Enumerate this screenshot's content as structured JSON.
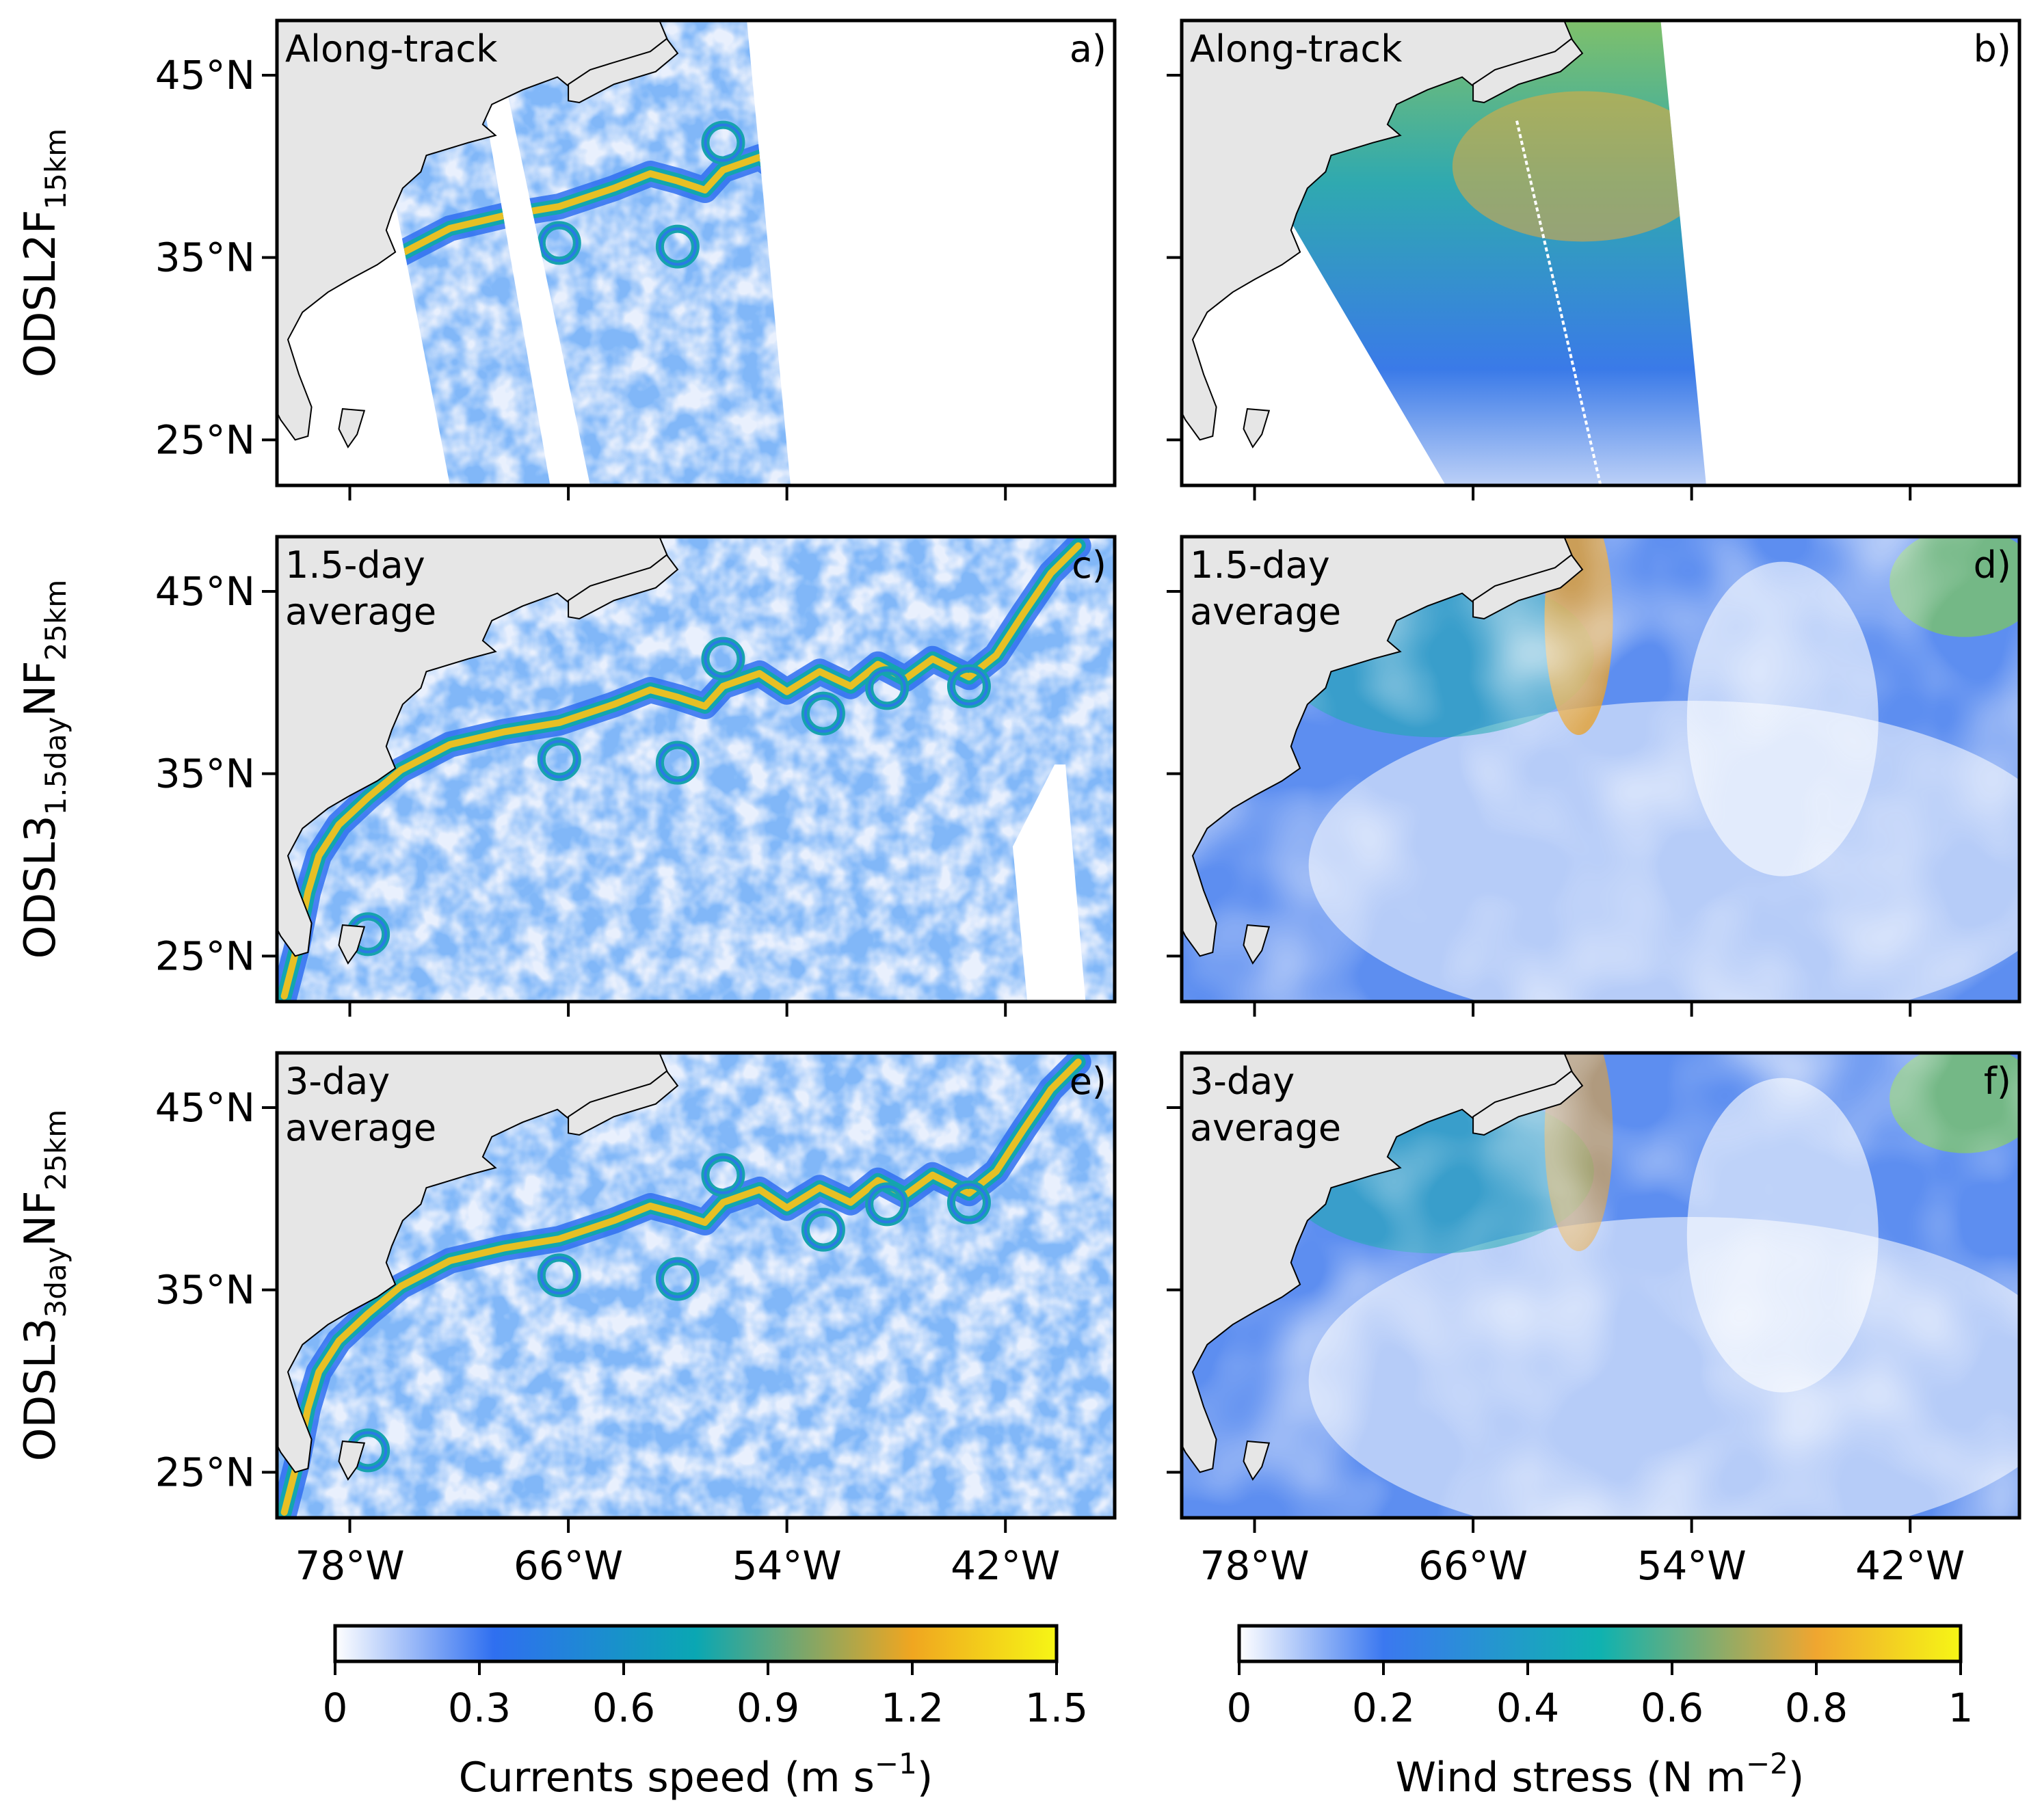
{
  "colors": {
    "land": "#e6e6e6",
    "ocean_background": "#ffffff",
    "frame": "#000000",
    "currents_colormap": [
      "#ffffff",
      "#2f6ff0",
      "#0aa7b3",
      "#f0a620",
      "#f6f615"
    ],
    "wind_colormap": [
      "#ffffff",
      "#3b78f0",
      "#0fb2b0",
      "#f0a630",
      "#f6f615"
    ]
  },
  "rows": [
    {
      "id": "row1",
      "label_main": "ODSL2F",
      "label_sub": "15km",
      "label_tail": "",
      "left_panel": {
        "note_line1": "Along-track",
        "note_line2": "",
        "letter": "a)",
        "field": "currents",
        "coverage": "swath"
      },
      "right_panel": {
        "note_line1": "Along-track",
        "note_line2": "",
        "letter": "b)",
        "field": "wind",
        "coverage": "swath"
      }
    },
    {
      "id": "row2",
      "label_main": "ODSL3",
      "label_sub": "1.5day",
      "label_tail": "NF",
      "label_sub2": "25km",
      "left_panel": {
        "note_line1": "1.5-day",
        "note_line2": "average",
        "letter": "c)",
        "field": "currents",
        "coverage": "full"
      },
      "right_panel": {
        "note_line1": "1.5-day",
        "note_line2": "average",
        "letter": "d)",
        "field": "wind",
        "coverage": "full"
      }
    },
    {
      "id": "row3",
      "label_main": "ODSL3",
      "label_sub": "3day",
      "label_tail": "NF",
      "label_sub2": "25km",
      "left_panel": {
        "note_line1": "3-day",
        "note_line2": "average",
        "letter": "e)",
        "field": "currents",
        "coverage": "full"
      },
      "right_panel": {
        "note_line1": "3-day",
        "note_line2": "average",
        "letter": "f)",
        "field": "wind",
        "coverage": "full"
      }
    }
  ],
  "axes": {
    "lat_ticks": [
      "45°N",
      "35°N",
      "25°N"
    ],
    "lon_ticks": [
      "78°W",
      "66°W",
      "54°W",
      "42°W"
    ],
    "lat_range": [
      22.5,
      48
    ],
    "lon_range": [
      -82,
      -36
    ]
  },
  "colorbars": [
    {
      "id": "currents",
      "label_pre": "Currents speed (m s",
      "label_sup": "−1",
      "label_post": ")",
      "ticks": [
        "0",
        "0.3",
        "0.6",
        "0.9",
        "1.2",
        "1.5"
      ],
      "range": [
        0,
        1.5
      ]
    },
    {
      "id": "wind",
      "label_pre": "Wind stress (N m",
      "label_sup": "−2",
      "label_post": ")",
      "ticks": [
        "0",
        "0.2",
        "0.4",
        "0.6",
        "0.8",
        "1"
      ],
      "range": [
        0,
        1
      ]
    }
  ]
}
